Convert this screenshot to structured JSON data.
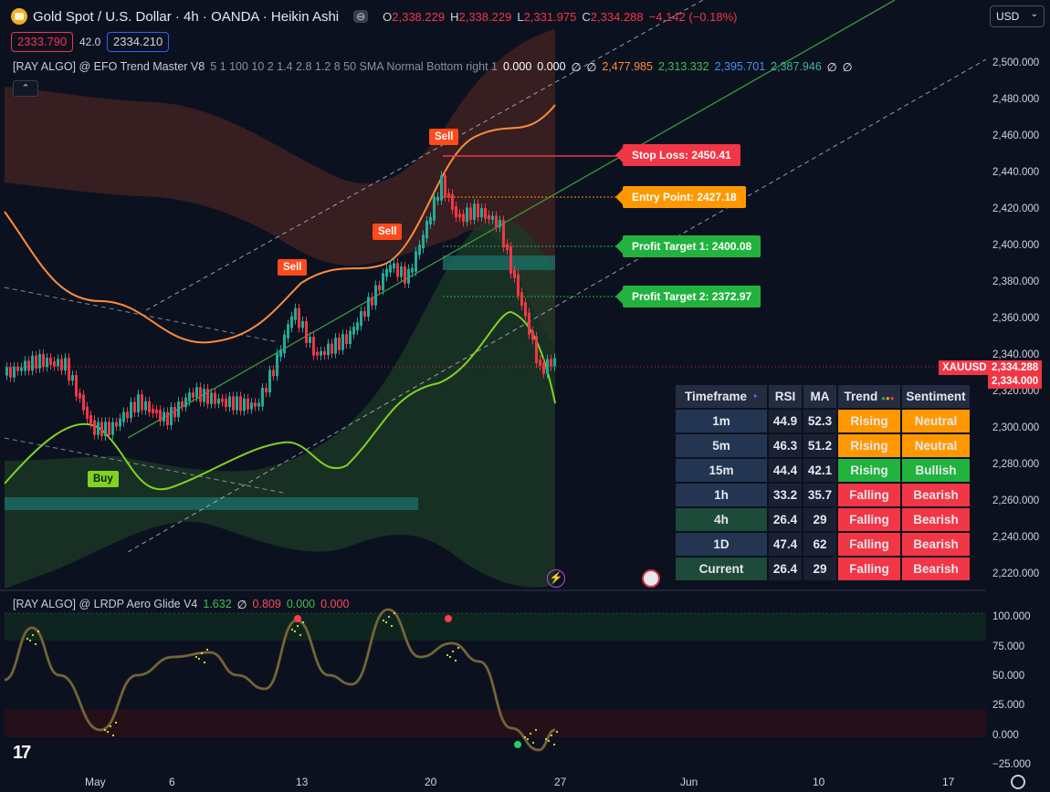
{
  "header": {
    "title": "Gold Spot / U.S. Dollar · 4h · OANDA · Heikin Ashi",
    "eye_icon": "eye-icon",
    "ohlc": [
      {
        "k": "O",
        "v": "2,338.229"
      },
      {
        "k": "H",
        "v": "2,338.229"
      },
      {
        "k": "L",
        "v": "2,331.975"
      },
      {
        "k": "C",
        "v": "2,334.288"
      }
    ],
    "change": "−4.142 (−0.18%)"
  },
  "bid": "2333.790",
  "spread": "42.0",
  "ask": "2334.210",
  "currency_select": "USD",
  "indicator_main": {
    "name": "[RAY ALGO] @ EFO Trend Master V8",
    "params": "5 1 100 10 2 1.4 2.8 1.2 8 50 SMA Normal Bottom right 1",
    "v1": "0.000",
    "v2": "0.000",
    "e1": "∅",
    "e2": "∅",
    "orange": "2,477.985",
    "green": "2,313.332",
    "blue": "2,395.701",
    "teal": "2,387.946",
    "e3": "∅",
    "e4": "∅"
  },
  "indicator_lower": {
    "name": "[RAY ALGO] @ LRDP Aero Glide V4",
    "v1": "1.632",
    "e": "∅",
    "v2": "0.809",
    "v3": "0.000",
    "v4": "0.000"
  },
  "signals": {
    "sell1": "Sell",
    "sell2": "Sell",
    "sell3": "Sell",
    "buy": "Buy"
  },
  "levels": {
    "stop_loss": "Stop Loss: 2450.41",
    "entry": "Entry Point: 2427.18",
    "pt1": "Profit Target 1: 2400.08",
    "pt2": "Profit Target 2: 2372.97"
  },
  "price_axis": [
    "2,500.000",
    "2,480.000",
    "2,460.000",
    "2,440.000",
    "2,420.000",
    "2,400.000",
    "2,380.000",
    "2,360.000",
    "2,340.000",
    "2,320.000",
    "2,300.000",
    "2,280.000",
    "2,260.000",
    "2,240.000",
    "2,220.000"
  ],
  "osc_axis": [
    "100.000",
    "75.000",
    "50.000",
    "25.000",
    "0.000",
    "−25.000"
  ],
  "time_axis": [
    "May",
    "6",
    "13",
    "20",
    "27",
    "Jun",
    "10",
    "17"
  ],
  "symbol_tag": "XAUUSD",
  "price_last": "2,334.288",
  "price_alt": "2,334.000",
  "table": {
    "headers": [
      "Timeframe",
      "RSI",
      "MA",
      "Trend",
      "Sentiment"
    ],
    "rows": [
      {
        "tf": "1m",
        "rsi": "44.9",
        "ma": "52.3",
        "trend": "Rising",
        "sent": "Neutral"
      },
      {
        "tf": "5m",
        "rsi": "46.3",
        "ma": "51.2",
        "trend": "Rising",
        "sent": "Neutral"
      },
      {
        "tf": "15m",
        "rsi": "44.4",
        "ma": "42.1",
        "trend": "Rising",
        "sent": "Bullish"
      },
      {
        "tf": "1h",
        "rsi": "33.2",
        "ma": "35.7",
        "trend": "Falling",
        "sent": "Bearish"
      },
      {
        "tf": "4h",
        "rsi": "26.4",
        "ma": "29",
        "trend": "Falling",
        "sent": "Bearish"
      },
      {
        "tf": "1D",
        "rsi": "47.4",
        "ma": "62",
        "trend": "Falling",
        "sent": "Bearish"
      },
      {
        "tf": "Current",
        "rsi": "26.4",
        "ma": "29",
        "trend": "Falling",
        "sent": "Bearish"
      }
    ]
  },
  "colors": {
    "bg": "#0c1120",
    "up": "#22ab94",
    "down": "#f23645",
    "orange": "#ff8c39",
    "lime": "#7fd321",
    "sell": "#ff4a1c"
  },
  "tv_logo": "17"
}
